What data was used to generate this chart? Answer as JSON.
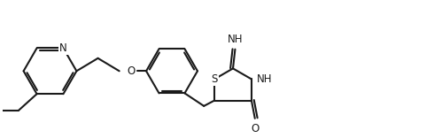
{
  "bg_color": "#ffffff",
  "line_color": "#1a1a1a",
  "line_width": 1.5,
  "fig_width": 4.99,
  "fig_height": 1.56,
  "dpi": 100,
  "xlim": [
    0,
    10.2
  ],
  "ylim": [
    0,
    3.2
  ]
}
